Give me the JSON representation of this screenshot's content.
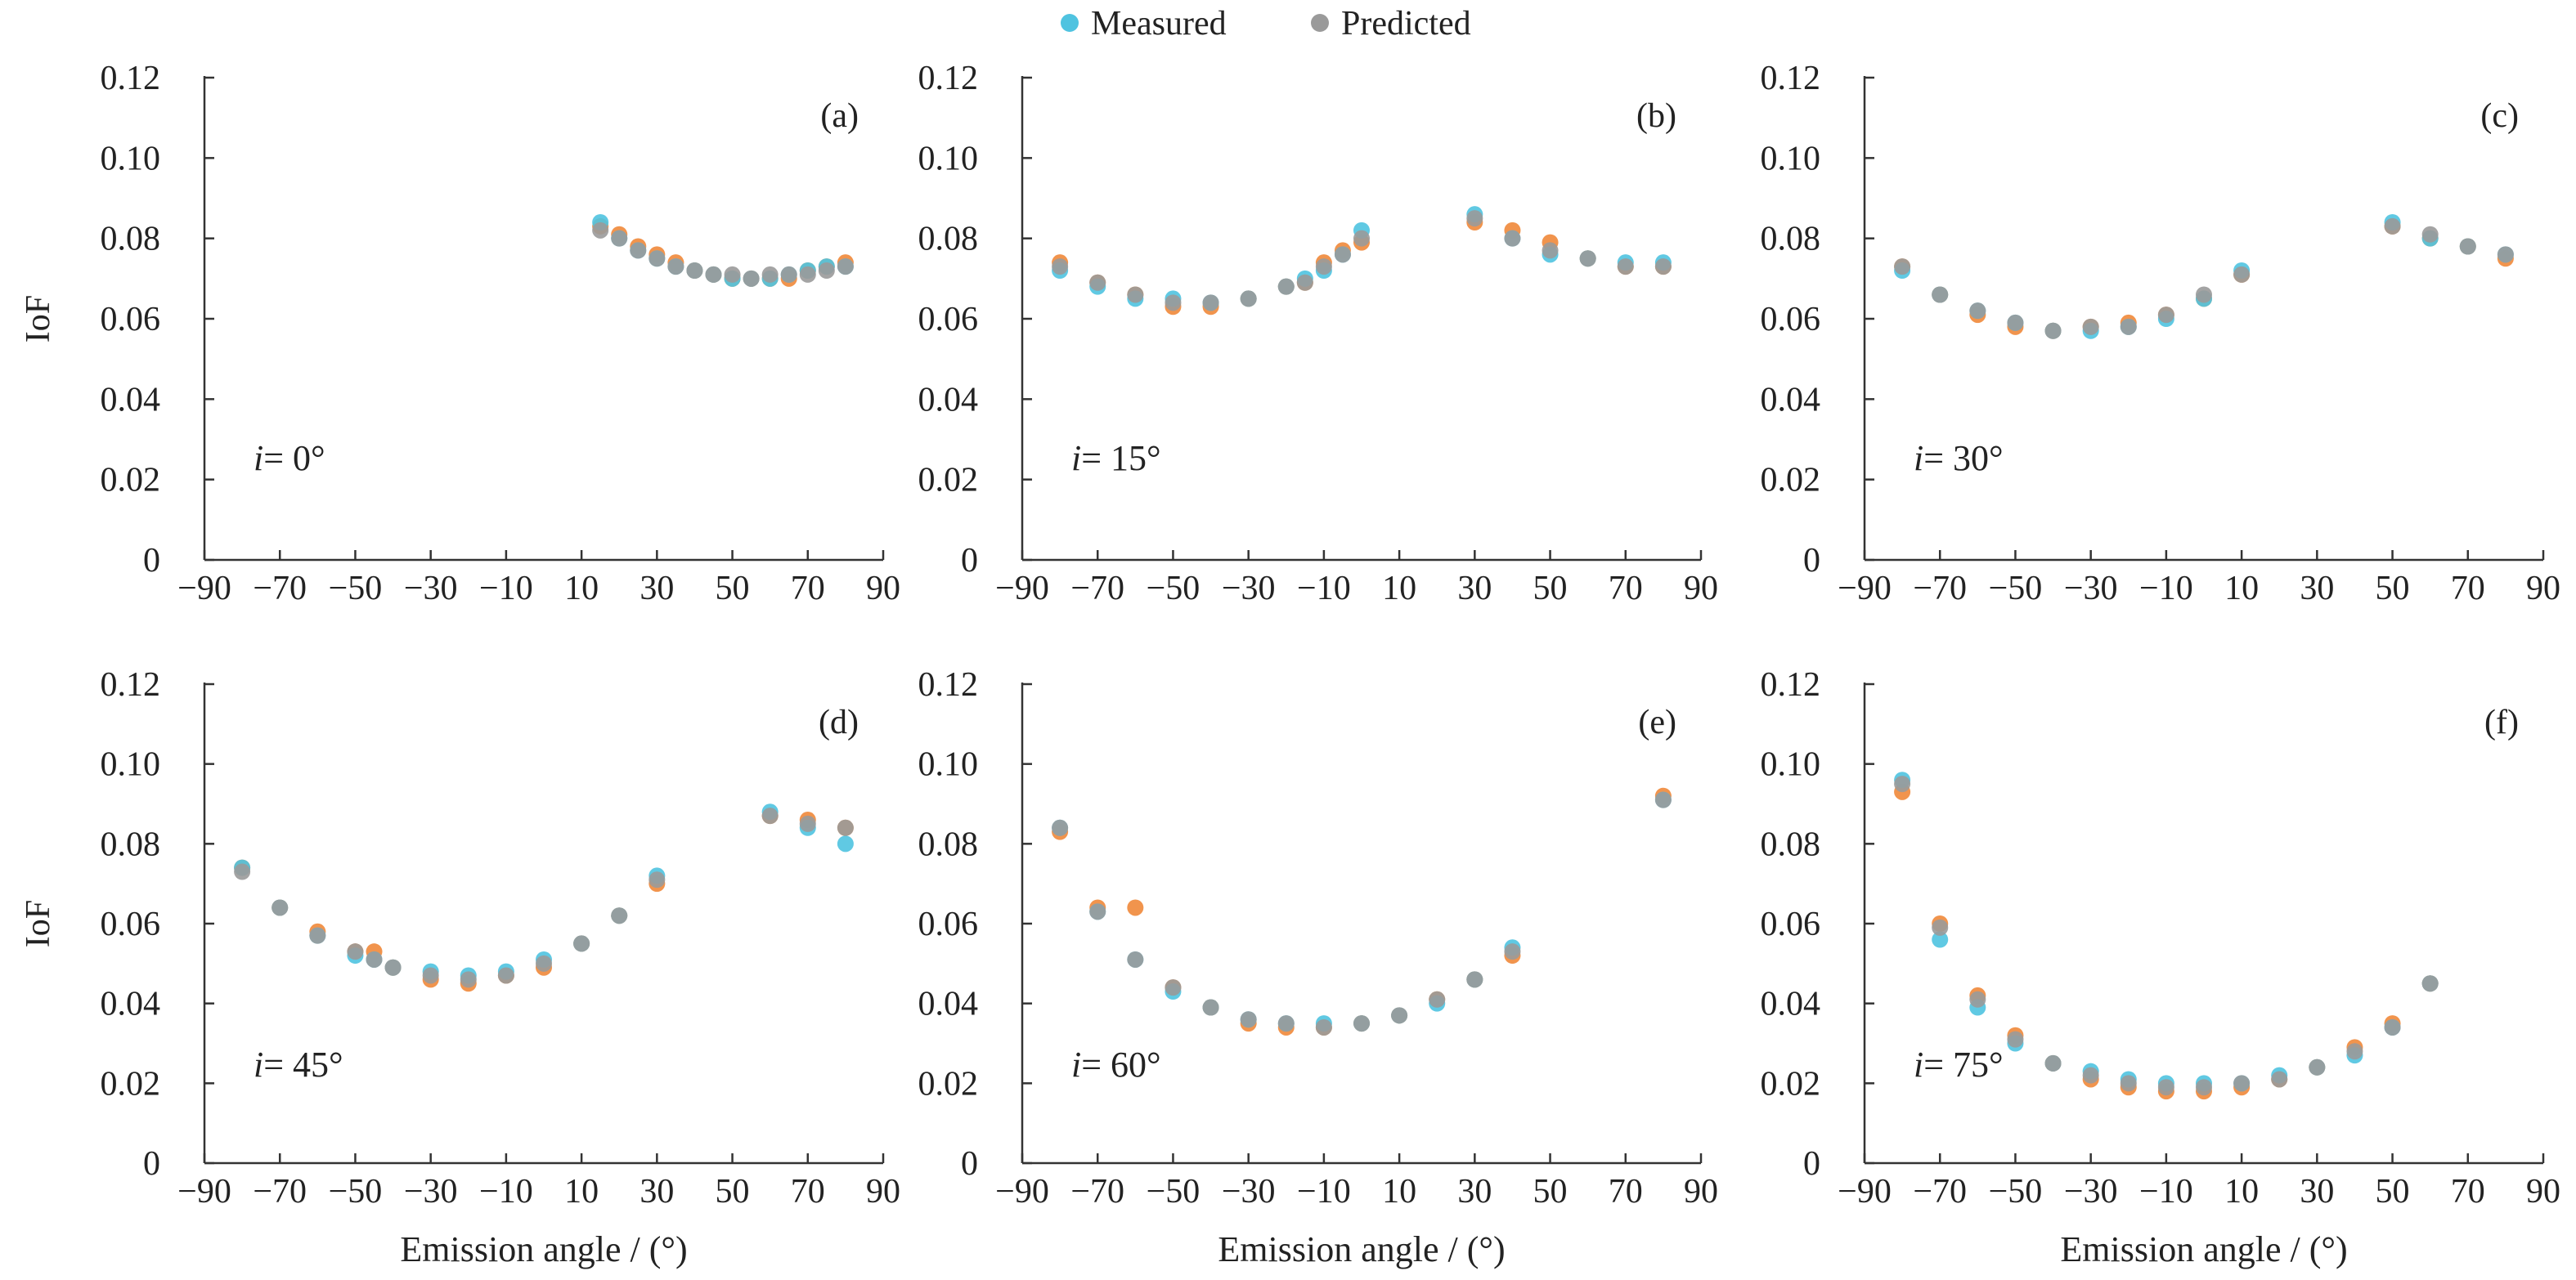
{
  "figure": {
    "legend": [
      {
        "label": "Measured",
        "color": "#4fc3e0"
      },
      {
        "label": "Predicted",
        "color": "#9a9a9a"
      }
    ],
    "extra_marker_color": "#f0883a"
  },
  "chart_data": [
    {
      "type": "scatter",
      "panel_label": "(a)",
      "annotation_var": "i",
      "annotation_value": "= 0°",
      "xlabel": "",
      "ylabel": "IoF",
      "xlim": [
        -90,
        90
      ],
      "ylim": [
        0,
        0.12
      ],
      "xticks": [
        "−90",
        "−70",
        "−50",
        "−30",
        "−10",
        "10",
        "30",
        "50",
        "70",
        "90"
      ],
      "yticks": [
        "0",
        "0.02",
        "0.04",
        "0.06",
        "0.08",
        "0.10",
        "0.12"
      ],
      "series": [
        {
          "name": "Measured",
          "x": [
            15,
            20,
            25,
            30,
            35,
            40,
            45,
            50,
            55,
            60,
            65,
            70,
            75,
            80
          ],
          "y": [
            0.084,
            0.08,
            0.077,
            0.075,
            0.073,
            0.072,
            0.071,
            0.07,
            0.07,
            0.07,
            0.071,
            0.072,
            0.073,
            0.073
          ]
        },
        {
          "name": "Predicted",
          "x": [
            15,
            20,
            25,
            30,
            35,
            40,
            45,
            50,
            55,
            60,
            65,
            70,
            75,
            80
          ],
          "y": [
            0.082,
            0.08,
            0.077,
            0.075,
            0.073,
            0.072,
            0.071,
            0.071,
            0.07,
            0.071,
            0.071,
            0.071,
            0.072,
            0.073
          ]
        },
        {
          "x": [
            15,
            20,
            25,
            30,
            35,
            40,
            45,
            50,
            55,
            60,
            65,
            70,
            75,
            80
          ],
          "y": [
            0.083,
            0.081,
            0.078,
            0.076,
            0.074,
            0.072,
            0.071,
            0.07,
            0.07,
            0.07,
            0.07,
            0.072,
            0.073,
            0.074
          ]
        }
      ]
    },
    {
      "type": "scatter",
      "panel_label": "(b)",
      "annotation_var": "i",
      "annotation_value": "= 15°",
      "xlabel": "",
      "ylabel": "",
      "xlim": [
        -90,
        90
      ],
      "ylim": [
        0,
        0.12
      ],
      "xticks": [
        "−90",
        "−70",
        "−50",
        "−30",
        "−10",
        "10",
        "30",
        "50",
        "70",
        "90"
      ],
      "yticks": [
        "0",
        "0.02",
        "0.04",
        "0.06",
        "0.08",
        "0.10",
        "0.12"
      ],
      "series": [
        {
          "name": "Measured",
          "x": [
            -80,
            -70,
            -60,
            -50,
            -40,
            -30,
            -20,
            -15,
            -10,
            -5,
            0,
            30,
            40,
            50,
            60,
            70,
            80
          ],
          "y": [
            0.072,
            0.068,
            0.065,
            0.065,
            0.064,
            0.065,
            0.068,
            0.07,
            0.072,
            0.076,
            0.082,
            0.086,
            0.08,
            0.076,
            0.075,
            0.074,
            0.074
          ]
        },
        {
          "name": "Predicted",
          "x": [
            -80,
            -70,
            -60,
            -50,
            -40,
            -30,
            -20,
            -15,
            -10,
            -5,
            0,
            30,
            40,
            50,
            60,
            70,
            80
          ],
          "y": [
            0.073,
            0.069,
            0.066,
            0.064,
            0.064,
            0.065,
            0.068,
            0.069,
            0.073,
            0.076,
            0.08,
            0.085,
            0.08,
            0.077,
            0.075,
            0.073,
            0.073
          ]
        },
        {
          "x": [
            -80,
            -70,
            -60,
            -50,
            -40,
            -30,
            -20,
            -15,
            -10,
            -5,
            0,
            30,
            40,
            50,
            60,
            70,
            80
          ],
          "y": [
            0.074,
            0.069,
            0.066,
            0.063,
            0.063,
            0.065,
            0.068,
            0.069,
            0.074,
            0.077,
            0.079,
            0.084,
            0.082,
            0.079,
            0.075,
            0.073,
            0.073
          ]
        }
      ]
    },
    {
      "type": "scatter",
      "panel_label": "(c)",
      "annotation_var": "i",
      "annotation_value": "= 30°",
      "xlabel": "",
      "ylabel": "",
      "xlim": [
        -90,
        90
      ],
      "ylim": [
        0,
        0.12
      ],
      "xticks": [
        "−90",
        "−70",
        "−50",
        "−30",
        "−10",
        "10",
        "30",
        "50",
        "70",
        "90"
      ],
      "yticks": [
        "0",
        "0.02",
        "0.04",
        "0.06",
        "0.08",
        "0.10",
        "0.12"
      ],
      "series": [
        {
          "name": "Measured",
          "x": [
            -80,
            -70,
            -60,
            -50,
            -40,
            -30,
            -20,
            -10,
            0,
            10,
            50,
            60,
            70,
            80
          ],
          "y": [
            0.072,
            0.066,
            0.062,
            0.059,
            0.057,
            0.057,
            0.058,
            0.06,
            0.065,
            0.072,
            0.084,
            0.08,
            0.078,
            0.076
          ]
        },
        {
          "name": "Predicted",
          "x": [
            -80,
            -70,
            -60,
            -50,
            -40,
            -30,
            -20,
            -10,
            0,
            10,
            50,
            60,
            70,
            80
          ],
          "y": [
            0.073,
            0.066,
            0.062,
            0.059,
            0.057,
            0.058,
            0.058,
            0.061,
            0.066,
            0.071,
            0.083,
            0.081,
            0.078,
            0.076
          ]
        },
        {
          "x": [
            -80,
            -70,
            -60,
            -50,
            -40,
            -30,
            -20,
            -10,
            0,
            10,
            50,
            60,
            70,
            80
          ],
          "y": [
            0.073,
            0.066,
            0.061,
            0.058,
            0.057,
            0.058,
            0.059,
            0.061,
            0.065,
            0.071,
            0.083,
            0.08,
            0.078,
            0.075
          ]
        }
      ]
    },
    {
      "type": "scatter",
      "panel_label": "(d)",
      "annotation_var": "i",
      "annotation_value": "= 45°",
      "xlabel": "Emission angle / (°)",
      "ylabel": "IoF",
      "xlim": [
        -90,
        90
      ],
      "ylim": [
        0,
        0.12
      ],
      "xticks": [
        "−90",
        "−70",
        "−50",
        "−30",
        "−10",
        "10",
        "30",
        "50",
        "70",
        "90"
      ],
      "yticks": [
        "0",
        "0.02",
        "0.04",
        "0.06",
        "0.08",
        "0.10",
        "0.12"
      ],
      "series": [
        {
          "name": "Measured",
          "x": [
            -80,
            -70,
            -60,
            -50,
            -45,
            -40,
            -30,
            -20,
            -10,
            0,
            10,
            20,
            30,
            60,
            70,
            80
          ],
          "y": [
            0.074,
            0.064,
            0.057,
            0.052,
            0.051,
            0.049,
            0.048,
            0.047,
            0.048,
            0.051,
            0.055,
            0.062,
            0.072,
            0.088,
            0.084,
            0.08
          ]
        },
        {
          "name": "Predicted",
          "x": [
            -80,
            -70,
            -60,
            -50,
            -45,
            -40,
            -30,
            -20,
            -10,
            0,
            10,
            20,
            30,
            60,
            70,
            80
          ],
          "y": [
            0.073,
            0.064,
            0.057,
            0.053,
            0.051,
            0.049,
            0.047,
            0.046,
            0.047,
            0.05,
            0.055,
            0.062,
            0.071,
            0.087,
            0.085,
            0.084
          ]
        },
        {
          "x": [
            -80,
            -70,
            -60,
            -50,
            -45,
            -40,
            -30,
            -20,
            -10,
            0,
            10,
            20,
            30,
            60,
            70,
            80
          ],
          "y": [
            0.074,
            0.064,
            0.058,
            0.053,
            0.053,
            0.049,
            0.046,
            0.045,
            0.047,
            0.049,
            0.055,
            0.062,
            0.07,
            0.087,
            0.086,
            0.084
          ]
        }
      ]
    },
    {
      "type": "scatter",
      "panel_label": "(e)",
      "annotation_var": "i",
      "annotation_value": "= 60°",
      "xlabel": "Emission angle / (°)",
      "ylabel": "",
      "xlim": [
        -90,
        90
      ],
      "ylim": [
        0,
        0.12
      ],
      "xticks": [
        "−90",
        "−70",
        "−50",
        "−30",
        "−10",
        "10",
        "30",
        "50",
        "70",
        "90"
      ],
      "yticks": [
        "0",
        "0.02",
        "0.04",
        "0.06",
        "0.08",
        "0.10",
        "0.12"
      ],
      "series": [
        {
          "name": "Measured",
          "x": [
            -80,
            -70,
            -60,
            -50,
            -40,
            -30,
            -20,
            -10,
            0,
            10,
            20,
            30,
            40,
            80
          ],
          "y": [
            0.084,
            0.063,
            0.051,
            0.043,
            0.039,
            0.036,
            0.035,
            0.035,
            0.035,
            0.037,
            0.04,
            0.046,
            0.054,
            0.091
          ]
        },
        {
          "name": "Predicted",
          "x": [
            -80,
            -70,
            -60,
            -50,
            -40,
            -30,
            -20,
            -10,
            0,
            10,
            20,
            30,
            40,
            80
          ],
          "y": [
            0.084,
            0.063,
            0.051,
            0.044,
            0.039,
            0.036,
            0.035,
            0.034,
            0.035,
            0.037,
            0.041,
            0.046,
            0.053,
            0.091
          ]
        },
        {
          "x": [
            -80,
            -70,
            -60,
            -50,
            -40,
            -30,
            -20,
            -10,
            0,
            10,
            20,
            30,
            40,
            80
          ],
          "y": [
            0.083,
            0.064,
            0.064,
            0.044,
            0.039,
            0.035,
            0.034,
            0.034,
            0.035,
            0.037,
            0.041,
            0.046,
            0.052,
            0.092
          ]
        }
      ]
    },
    {
      "type": "scatter",
      "panel_label": "(f)",
      "annotation_var": "i",
      "annotation_value": "= 75°",
      "xlabel": "Emission angle / (°)",
      "ylabel": "",
      "xlim": [
        -90,
        90
      ],
      "ylim": [
        0,
        0.12
      ],
      "xticks": [
        "−90",
        "−70",
        "−50",
        "−30",
        "−10",
        "10",
        "30",
        "50",
        "70",
        "90"
      ],
      "yticks": [
        "0",
        "0.02",
        "0.04",
        "0.06",
        "0.08",
        "0.10",
        "0.12"
      ],
      "series": [
        {
          "name": "Measured",
          "x": [
            -80,
            -70,
            -60,
            -50,
            -40,
            -30,
            -20,
            -10,
            0,
            10,
            20,
            30,
            40,
            50,
            60
          ],
          "y": [
            0.096,
            0.056,
            0.039,
            0.03,
            0.025,
            0.023,
            0.021,
            0.02,
            0.02,
            0.02,
            0.022,
            0.024,
            0.027,
            0.034,
            0.045
          ]
        },
        {
          "name": "Predicted",
          "x": [
            -80,
            -70,
            -60,
            -50,
            -40,
            -30,
            -20,
            -10,
            0,
            10,
            20,
            30,
            40,
            50,
            60
          ],
          "y": [
            0.095,
            0.059,
            0.041,
            0.031,
            0.025,
            0.022,
            0.02,
            0.019,
            0.019,
            0.02,
            0.021,
            0.024,
            0.028,
            0.034,
            0.045
          ]
        },
        {
          "x": [
            -80,
            -70,
            -60,
            -50,
            -40,
            -30,
            -20,
            -10,
            0,
            10,
            20,
            30,
            40,
            50,
            60
          ],
          "y": [
            0.093,
            0.06,
            0.042,
            0.032,
            0.025,
            0.021,
            0.019,
            0.018,
            0.018,
            0.019,
            0.021,
            0.024,
            0.029,
            0.035,
            0.045
          ]
        }
      ]
    }
  ]
}
